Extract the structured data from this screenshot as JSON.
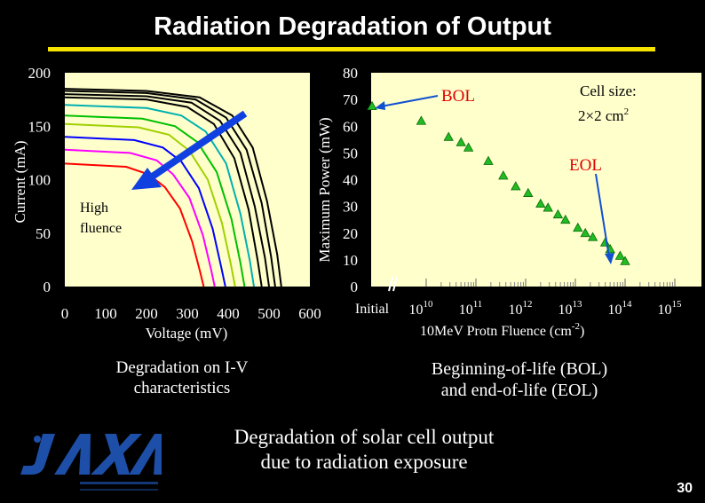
{
  "slide": {
    "title": "Radiation Degradation of Output",
    "caption_left": [
      "Degradation on I-V",
      "characteristics"
    ],
    "caption_right": [
      "Beginning-of-life (BOL)",
      "and end-of-life (EOL)"
    ],
    "caption_bottom": [
      "Degradation of solar cell output",
      "due to radiation exposure"
    ],
    "page_number": "30",
    "colors": {
      "background": "#000000",
      "rule": "#f4e400",
      "plot_bg": "#ffffcc",
      "logo": "#1d4fa8"
    },
    "logo_icon": "jaxa-logo"
  },
  "chart_data": [
    {
      "type": "line",
      "xlabel": "Voltage (mV)",
      "ylabel": "Current (mA)",
      "xlim": [
        0,
        600
      ],
      "ylim": [
        0,
        200
      ],
      "x_ticks": [
        "0",
        "100",
        "200",
        "300",
        "400",
        "500",
        "600"
      ],
      "y_ticks": [
        "0",
        "50",
        "100",
        "150",
        "200"
      ],
      "annotation": [
        "High",
        "fluence"
      ],
      "series": [
        {
          "color": "#000000",
          "values": [
            [
              0,
              185
            ],
            [
              200,
              183
            ],
            [
              330,
              177
            ],
            [
              410,
              160
            ],
            [
              460,
              130
            ],
            [
              495,
              80
            ],
            [
              520,
              30
            ],
            [
              530,
              0
            ]
          ]
        },
        {
          "color": "#000000",
          "values": [
            [
              0,
              183
            ],
            [
              200,
              181
            ],
            [
              320,
              175
            ],
            [
              395,
              158
            ],
            [
              445,
              128
            ],
            [
              482,
              78
            ],
            [
              505,
              28
            ],
            [
              515,
              0
            ]
          ]
        },
        {
          "color": "#000000",
          "values": [
            [
              0,
              180
            ],
            [
              200,
              178
            ],
            [
              310,
              172
            ],
            [
              380,
              155
            ],
            [
              430,
              125
            ],
            [
              465,
              75
            ],
            [
              490,
              27
            ],
            [
              500,
              0
            ]
          ]
        },
        {
          "color": "#000000",
          "values": [
            [
              0,
              177
            ],
            [
              200,
              175
            ],
            [
              300,
              168
            ],
            [
              365,
              152
            ],
            [
              415,
              120
            ],
            [
              450,
              72
            ],
            [
              472,
              25
            ],
            [
              482,
              0
            ]
          ]
        },
        {
          "color": "#00b0b0",
          "values": [
            [
              0,
              170
            ],
            [
              200,
              167
            ],
            [
              285,
              160
            ],
            [
              345,
              145
            ],
            [
              395,
              115
            ],
            [
              430,
              68
            ],
            [
              453,
              24
            ],
            [
              463,
              0
            ]
          ]
        },
        {
          "color": "#00c000",
          "values": [
            [
              0,
              160
            ],
            [
              190,
              157
            ],
            [
              270,
              150
            ],
            [
              325,
              135
            ],
            [
              372,
              107
            ],
            [
              408,
              63
            ],
            [
              430,
              22
            ],
            [
              440,
              0
            ]
          ]
        },
        {
          "color": "#a0d000",
          "values": [
            [
              0,
              152
            ],
            [
              180,
              149
            ],
            [
              255,
              142
            ],
            [
              305,
              127
            ],
            [
              350,
              100
            ],
            [
              385,
              59
            ],
            [
              407,
              20
            ],
            [
              417,
              0
            ]
          ]
        },
        {
          "color": "#0000ff",
          "values": [
            [
              0,
              140
            ],
            [
              170,
              137
            ],
            [
              240,
              130
            ],
            [
              285,
              117
            ],
            [
              328,
              92
            ],
            [
              362,
              54
            ],
            [
              383,
              18
            ],
            [
              393,
              0
            ]
          ]
        },
        {
          "color": "#ff00ff",
          "values": [
            [
              0,
              128
            ],
            [
              160,
              125
            ],
            [
              225,
              118
            ],
            [
              265,
              105
            ],
            [
              305,
              83
            ],
            [
              338,
              48
            ],
            [
              358,
              16
            ],
            [
              367,
              0
            ]
          ]
        },
        {
          "color": "#ff0000",
          "values": [
            [
              0,
              115
            ],
            [
              150,
              112
            ],
            [
              205,
              105
            ],
            [
              245,
              93
            ],
            [
              282,
              73
            ],
            [
              312,
              42
            ],
            [
              331,
              14
            ],
            [
              340,
              0
            ]
          ]
        }
      ]
    },
    {
      "type": "scatter",
      "xlabel": "10MeV Protn Fluence (cm-2)",
      "ylabel": "Maximum Power (mW)",
      "x_scale": "log",
      "x_extra_tick": "Initial",
      "x_ticks": [
        "10",
        "10",
        "10",
        "10",
        "10",
        "10"
      ],
      "x_tick_exponents": [
        "10",
        "11",
        "12",
        "13",
        "14",
        "15"
      ],
      "xlim": [
        10,
        15
      ],
      "ylim": [
        0,
        80
      ],
      "y_ticks": [
        "0",
        "10",
        "20",
        "30",
        "40",
        "50",
        "60",
        "70",
        "80"
      ],
      "initial_point": 67.5,
      "annotations": {
        "bol": "BOL",
        "eol": "EOL",
        "cell_size_line1": "Cell size:",
        "cell_size_line2": "2×2 cm",
        "cell_size_sup": "2"
      },
      "marker_color": "#22bb22",
      "values": [
        [
          9.9,
          62
        ],
        [
          10.45,
          56
        ],
        [
          10.7,
          54
        ],
        [
          10.85,
          52
        ],
        [
          11.25,
          47
        ],
        [
          11.55,
          41.5
        ],
        [
          11.8,
          37.5
        ],
        [
          12.05,
          35
        ],
        [
          12.3,
          31
        ],
        [
          12.45,
          29.5
        ],
        [
          12.65,
          27
        ],
        [
          12.8,
          25
        ],
        [
          13.05,
          22
        ],
        [
          13.2,
          20
        ],
        [
          13.35,
          18.5
        ],
        [
          13.6,
          16.5
        ],
        [
          13.7,
          14
        ],
        [
          13.9,
          11.5
        ],
        [
          14.0,
          9.5
        ]
      ]
    }
  ]
}
